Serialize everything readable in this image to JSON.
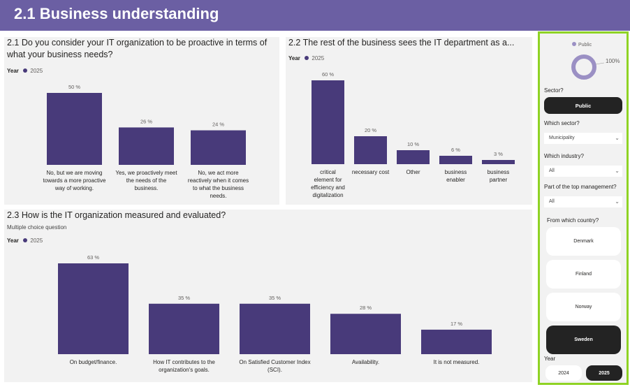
{
  "page_title": "2.1 Business understanding",
  "colors": {
    "header": "#6b5fa3",
    "bar": "#483a7a",
    "slicer_border": "#8fd324",
    "selected": "#232323"
  },
  "legend": {
    "title": "Year",
    "series": "2025"
  },
  "charts": {
    "c1": {
      "title": "2.1 Do you consider your IT organization to be proactive in terms of what your business needs?",
      "chart_data": {
        "type": "bar",
        "categories": [
          [
            "No, but we are moving",
            "towards a more proactive",
            "way of working."
          ],
          [
            "Yes, we proactively meet",
            "the needs of the",
            "business."
          ],
          [
            "No, we act more",
            "reactively when it comes",
            "to what the business",
            "needs."
          ]
        ],
        "values": [
          50,
          26,
          24
        ],
        "labels": [
          "50 %",
          "26 %",
          "24 %"
        ],
        "ylim": [
          0,
          50
        ],
        "series": [
          {
            "name": "2025"
          }
        ]
      }
    },
    "c2": {
      "title": "2.2 The rest of the business sees the IT department as a...",
      "chart_data": {
        "type": "bar",
        "categories": [
          [
            "critical",
            "element for",
            "efficiency and",
            "digitalization"
          ],
          [
            "necessary cost"
          ],
          [
            "Other"
          ],
          [
            "business",
            "enabler"
          ],
          [
            "business",
            "partner"
          ]
        ],
        "values": [
          60,
          20,
          10,
          6,
          3
        ],
        "labels": [
          "60 %",
          "20 %",
          "10 %",
          "6 %",
          "3 %"
        ],
        "ylim": [
          0,
          60
        ],
        "series": [
          {
            "name": "2025"
          }
        ]
      }
    },
    "c3": {
      "title": "2.3 How is the IT organization measured and evaluated?",
      "subtitle": "Multiple choice question",
      "chart_data": {
        "type": "bar",
        "categories": [
          [
            "On budget/finance."
          ],
          [
            "How IT contributes to the",
            "organization's goals."
          ],
          [
            "On Satisfied Customer Index",
            "(SCI)."
          ],
          [
            "Availability."
          ],
          [
            "It is not measured."
          ]
        ],
        "values": [
          63,
          35,
          35,
          28,
          17
        ],
        "labels": [
          "63 %",
          "35 %",
          "35 %",
          "28 %",
          "17 %"
        ],
        "ylim": [
          0,
          63
        ],
        "series": [
          {
            "name": "2025"
          }
        ]
      }
    }
  },
  "slicer": {
    "donut": {
      "legend": "Public",
      "value_label": "100%",
      "value": 1.0
    },
    "sector_label": "Sector?",
    "sector_value": "Public",
    "which_sector_label": "Which sector?",
    "which_sector_value": "Municipality",
    "which_industry_label": "Which industry?",
    "which_industry_value": "All",
    "top_mgmt_label": "Part of the top management?",
    "top_mgmt_value": "All",
    "country_label": "From which country?",
    "countries": [
      "Denmark",
      "Finland",
      "Norway",
      "Sweden"
    ],
    "country_selected": "Sweden",
    "year_label": "Year",
    "years": [
      "2024",
      "2025"
    ],
    "year_selected": "2025"
  }
}
